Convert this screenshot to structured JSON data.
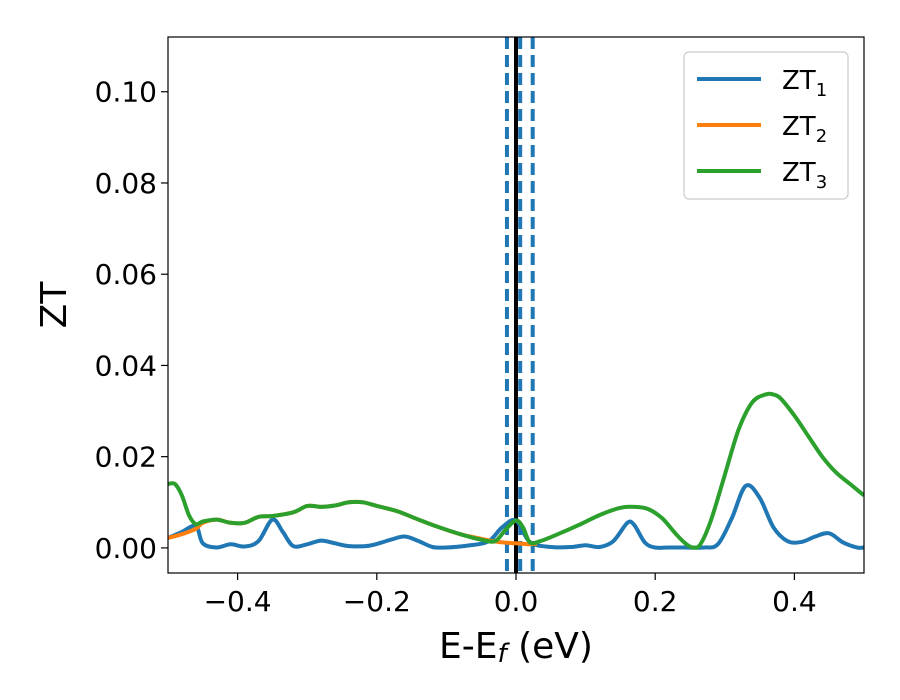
{
  "chart_data": {
    "type": "line",
    "xlabel": "E-E",
    "xlabel_sub": "f",
    "xlabel_unit": " (eV)",
    "ylabel": "ZT",
    "xlim": [
      -0.5,
      0.5
    ],
    "ylim": [
      -0.0055,
      0.112
    ],
    "xticks": [
      -0.4,
      -0.2,
      0.0,
      0.2,
      0.4
    ],
    "xtick_labels": [
      "−0.4",
      "−0.2",
      "0.0",
      "0.2",
      "0.4"
    ],
    "yticks": [
      0.0,
      0.02,
      0.04,
      0.06,
      0.08,
      0.1
    ],
    "ytick_labels": [
      "0.00",
      "0.02",
      "0.04",
      "0.06",
      "0.08",
      "0.10"
    ],
    "grid": false,
    "legend_position": "top-right",
    "vertical_lines": [
      {
        "x": -0.013,
        "style": "dashed",
        "color": "#1f77b4"
      },
      {
        "x": 0.0,
        "style": "solid",
        "color": "#000000"
      },
      {
        "x": 0.006,
        "style": "dashed",
        "color": "#1f77b4"
      },
      {
        "x": 0.024,
        "style": "dashed",
        "color": "#1f77b4"
      }
    ],
    "series": [
      {
        "name": "ZT",
        "name_sub": "1",
        "color": "#1f77b4",
        "x": [
          -0.5,
          -0.48,
          -0.46,
          -0.45,
          -0.43,
          -0.41,
          -0.39,
          -0.37,
          -0.35,
          -0.335,
          -0.32,
          -0.3,
          -0.28,
          -0.26,
          -0.24,
          -0.21,
          -0.18,
          -0.16,
          -0.14,
          -0.12,
          -0.1,
          -0.07,
          -0.04,
          -0.02,
          0.0,
          0.02,
          0.05,
          0.08,
          0.1,
          0.12,
          0.14,
          0.16,
          0.17,
          0.185,
          0.2,
          0.22,
          0.24,
          0.27,
          0.29,
          0.31,
          0.33,
          0.35,
          0.37,
          0.39,
          0.41,
          0.43,
          0.45,
          0.47,
          0.49,
          0.5
        ],
        "y": [
          0.0022,
          0.0035,
          0.0048,
          0.001,
          0.0001,
          0.0008,
          0.0003,
          0.0015,
          0.0062,
          0.0035,
          0.0004,
          0.0008,
          0.0016,
          0.001,
          0.0004,
          0.0005,
          0.0018,
          0.0025,
          0.0015,
          0.0002,
          0.0001,
          0.0005,
          0.0014,
          0.0045,
          0.006,
          0.0013,
          0.0002,
          0.0002,
          0.0006,
          0.0002,
          0.0015,
          0.0055,
          0.005,
          0.0012,
          0.0001,
          0.0001,
          0.0001,
          0.0001,
          0.0008,
          0.0065,
          0.0136,
          0.011,
          0.0045,
          0.0015,
          0.0013,
          0.0025,
          0.0032,
          0.0012,
          0.0001,
          0.0001
        ]
      },
      {
        "name": "ZT",
        "name_sub": "2",
        "color": "#ff7f0e",
        "x": [
          -0.5,
          -0.48,
          -0.46,
          -0.45,
          -0.43,
          -0.41,
          -0.39,
          -0.37,
          -0.35,
          -0.32,
          -0.3,
          -0.28,
          -0.26,
          -0.24,
          -0.22,
          -0.2,
          -0.17,
          -0.14,
          -0.11,
          -0.08,
          -0.05,
          -0.03,
          -0.01,
          0.0,
          0.01,
          0.02,
          0.03
        ],
        "y": [
          0.0022,
          0.003,
          0.0042,
          0.0055,
          0.0062,
          0.0055,
          0.0055,
          0.0068,
          0.007,
          0.0078,
          0.0092,
          0.009,
          0.0093,
          0.01,
          0.01,
          0.0092,
          0.008,
          0.0062,
          0.0045,
          0.003,
          0.002,
          0.0014,
          0.0011,
          0.001,
          0.0009,
          0.0008,
          0.0009
        ]
      },
      {
        "name": "ZT",
        "name_sub": "3",
        "color": "#2ca02c",
        "x": [
          -0.5,
          -0.49,
          -0.48,
          -0.47,
          -0.46,
          -0.45,
          -0.43,
          -0.41,
          -0.39,
          -0.37,
          -0.35,
          -0.32,
          -0.3,
          -0.28,
          -0.26,
          -0.24,
          -0.22,
          -0.2,
          -0.17,
          -0.14,
          -0.11,
          -0.08,
          -0.05,
          -0.03,
          -0.015,
          0.0,
          0.01,
          0.02,
          0.035,
          0.06,
          0.09,
          0.12,
          0.15,
          0.17,
          0.19,
          0.21,
          0.23,
          0.245,
          0.255,
          0.265,
          0.28,
          0.3,
          0.32,
          0.34,
          0.36,
          0.37,
          0.38,
          0.4,
          0.42,
          0.44,
          0.46,
          0.48,
          0.5
        ],
        "y": [
          0.014,
          0.014,
          0.0115,
          0.0072,
          0.0052,
          0.0058,
          0.0062,
          0.0055,
          0.0055,
          0.0068,
          0.007,
          0.0078,
          0.0092,
          0.009,
          0.0093,
          0.01,
          0.01,
          0.0092,
          0.008,
          0.0062,
          0.0045,
          0.003,
          0.0018,
          0.0015,
          0.004,
          0.006,
          0.0045,
          0.0012,
          0.0015,
          0.003,
          0.005,
          0.0072,
          0.0088,
          0.009,
          0.0085,
          0.0065,
          0.003,
          0.0008,
          0.0001,
          0.0008,
          0.006,
          0.016,
          0.026,
          0.032,
          0.0337,
          0.0336,
          0.0328,
          0.029,
          0.0245,
          0.02,
          0.0165,
          0.014,
          0.0115
        ]
      }
    ]
  }
}
